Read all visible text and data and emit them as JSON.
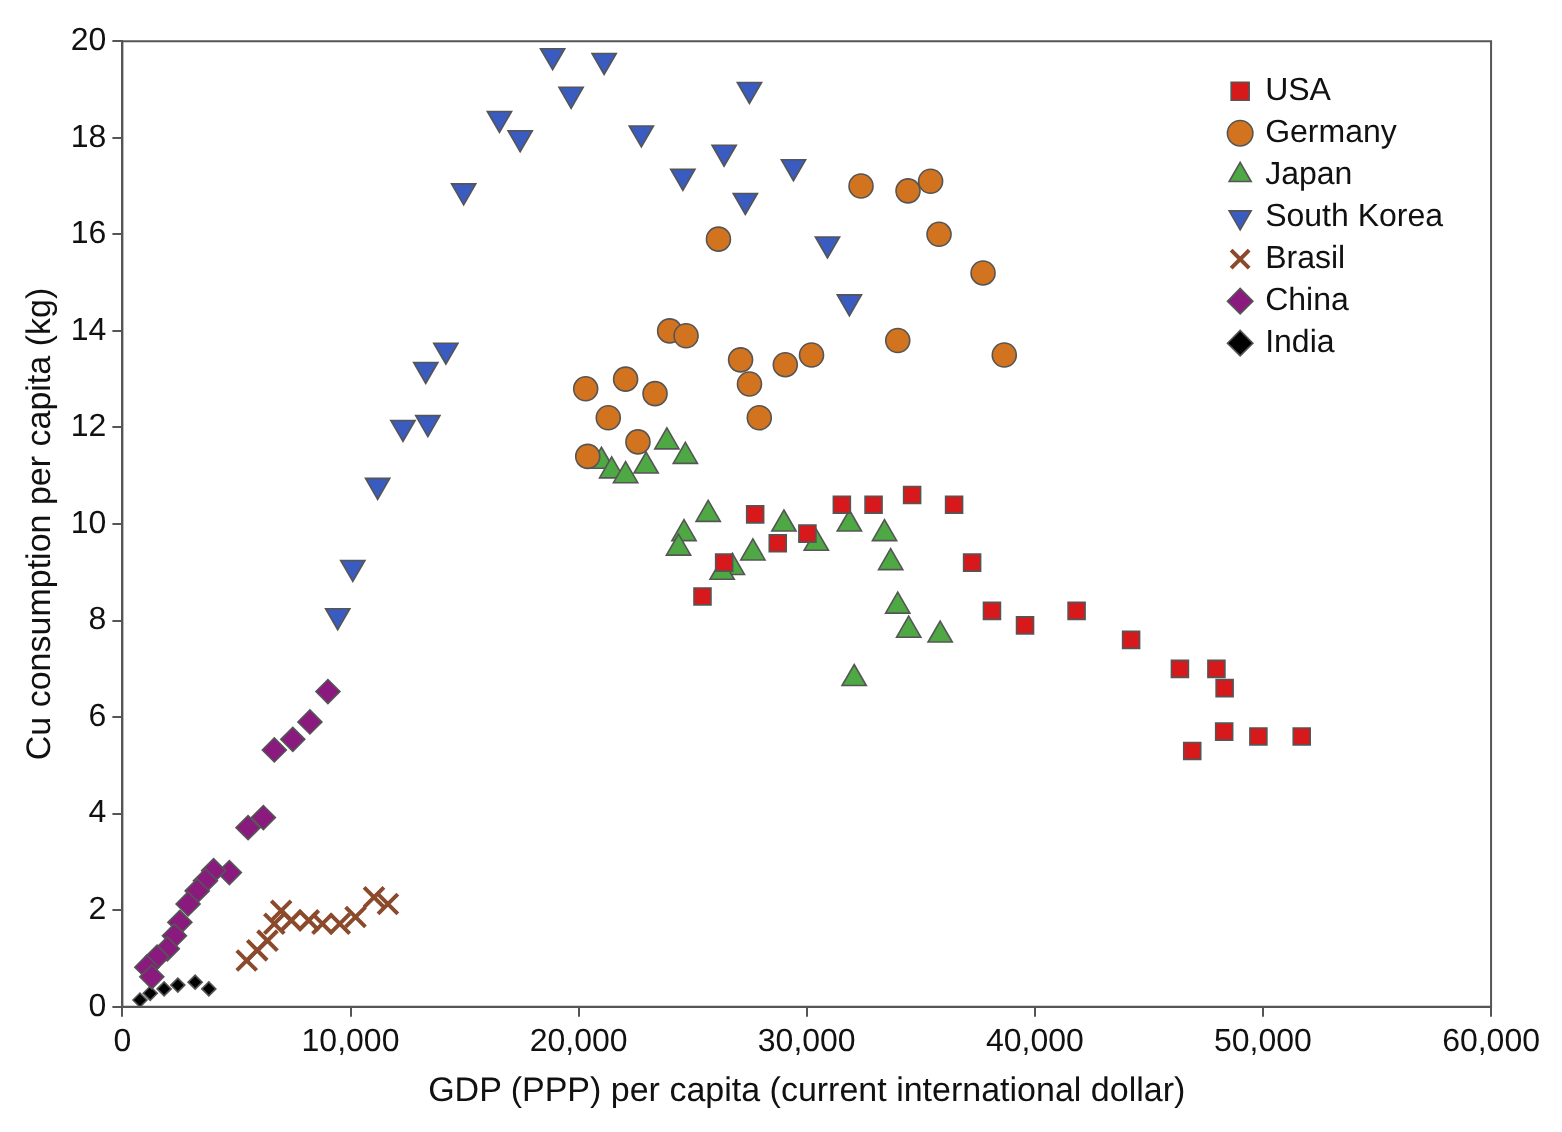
{
  "chart_data": {
    "type": "scatter",
    "xlabel": "GDP (PPP) per capita (current international dollar)",
    "ylabel": "Cu consumption per capita (kg)",
    "xlim": [
      0,
      60000
    ],
    "ylim": [
      0,
      20
    ],
    "xticks": [
      0,
      {
        "value": 10000,
        "label": "10,000"
      },
      {
        "value": 20000,
        "label": "20,000"
      },
      {
        "value": 30000,
        "label": "30,000"
      },
      {
        "value": 40000,
        "label": "40,000"
      },
      {
        "value": 50000,
        "label": "50,000"
      },
      {
        "value": 60000,
        "label": "60,000"
      }
    ],
    "yticks": [
      0,
      2,
      4,
      6,
      8,
      10,
      12,
      14,
      16,
      18,
      20
    ],
    "grid": false,
    "legend": "top right",
    "series": [
      {
        "name": "USA",
        "color": "#d7191c",
        "marker": "square",
        "x": [
          25430,
          27740,
          26380,
          28730,
          30030,
          31540,
          32930,
          34620,
          36460,
          37250,
          38120,
          39570,
          41830,
          44220,
          46360,
          47960,
          48320,
          46900,
          48300,
          49800,
          51700
        ],
        "values": [
          8.5,
          10.2,
          9.2,
          9.6,
          9.8,
          10.4,
          10.4,
          10.6,
          10.4,
          9.2,
          8.2,
          7.9,
          8.2,
          7.6,
          7.0,
          7.0,
          6.6,
          5.3,
          5.7,
          5.6,
          5.6
        ]
      },
      {
        "name": "Germany",
        "color": "#d2731f",
        "marker": "circle",
        "x": [
          20310,
          22060,
          23350,
          21300,
          22600,
          20400,
          23990,
          24710,
          27100,
          27490,
          27920,
          29060,
          30210,
          26130,
          32380,
          34440,
          35430,
          35800,
          37730,
          33990,
          38660
        ],
        "values": [
          12.8,
          13.0,
          12.7,
          12.2,
          11.7,
          11.4,
          14.0,
          13.9,
          13.4,
          12.9,
          12.2,
          13.3,
          13.5,
          15.9,
          17.0,
          16.9,
          17.1,
          16.0,
          15.2,
          13.8,
          13.5
        ]
      },
      {
        "name": "Japan",
        "color": "#4ea843",
        "marker": "triangle",
        "x": [
          21000,
          21450,
          22060,
          22960,
          23870,
          24680,
          25680,
          24620,
          24380,
          29000,
          27640,
          26740,
          26290,
          30420,
          31870,
          33410,
          33680,
          33990,
          34470,
          35850,
          32080
        ],
        "values": [
          11.3,
          11.1,
          11.0,
          11.2,
          11.7,
          11.4,
          10.2,
          9.8,
          9.5,
          10.0,
          9.4,
          9.1,
          9.0,
          9.6,
          10.0,
          9.8,
          9.2,
          8.3,
          7.8,
          7.7,
          6.8
        ]
      },
      {
        "name": "South Korea",
        "color": "#3a5bbf",
        "marker": "triangle-down",
        "x": [
          9440,
          10100,
          11190,
          12300,
          13390,
          13300,
          14180,
          14960,
          16530,
          17440,
          18860,
          19670,
          21120,
          22750,
          24570,
          26380,
          27310,
          27490,
          29420,
          30910,
          31870
        ],
        "values": [
          8.1,
          9.1,
          10.8,
          12.0,
          12.1,
          13.2,
          13.6,
          16.9,
          18.4,
          18.0,
          19.7,
          18.9,
          19.6,
          18.1,
          17.2,
          17.7,
          16.7,
          19.0,
          17.4,
          15.8,
          14.6
        ]
      },
      {
        "name": "Brasil",
        "color": "#8b4a2b",
        "marker": "cross",
        "x": [
          5450,
          5910,
          6360,
          6660,
          6960,
          7410,
          8170,
          8770,
          9530,
          10220,
          11030,
          11640
        ],
        "values": [
          0.96,
          1.17,
          1.37,
          1.72,
          1.99,
          1.79,
          1.79,
          1.72,
          1.72,
          1.86,
          2.27,
          2.13
        ]
      },
      {
        "name": "China",
        "color": "#8b1a7f",
        "marker": "diamond",
        "x": [
          9010,
          8220,
          7470,
          6660,
          6180,
          5510,
          4690,
          4000,
          3640,
          3280,
          2880,
          2520,
          2280,
          1970,
          1520,
          1070,
          1290
        ],
        "values": [
          6.53,
          5.9,
          5.54,
          5.32,
          3.92,
          3.71,
          2.78,
          2.82,
          2.61,
          2.4,
          2.13,
          1.75,
          1.47,
          1.2,
          1.03,
          0.82,
          0.62
        ]
      },
      {
        "name": "India",
        "color": "#000000",
        "marker": "diamond",
        "x": [
          770,
          1220,
          1830,
          2430,
          3190,
          3790
        ],
        "values": [
          0.14,
          0.28,
          0.37,
          0.45,
          0.51,
          0.37
        ]
      }
    ]
  }
}
